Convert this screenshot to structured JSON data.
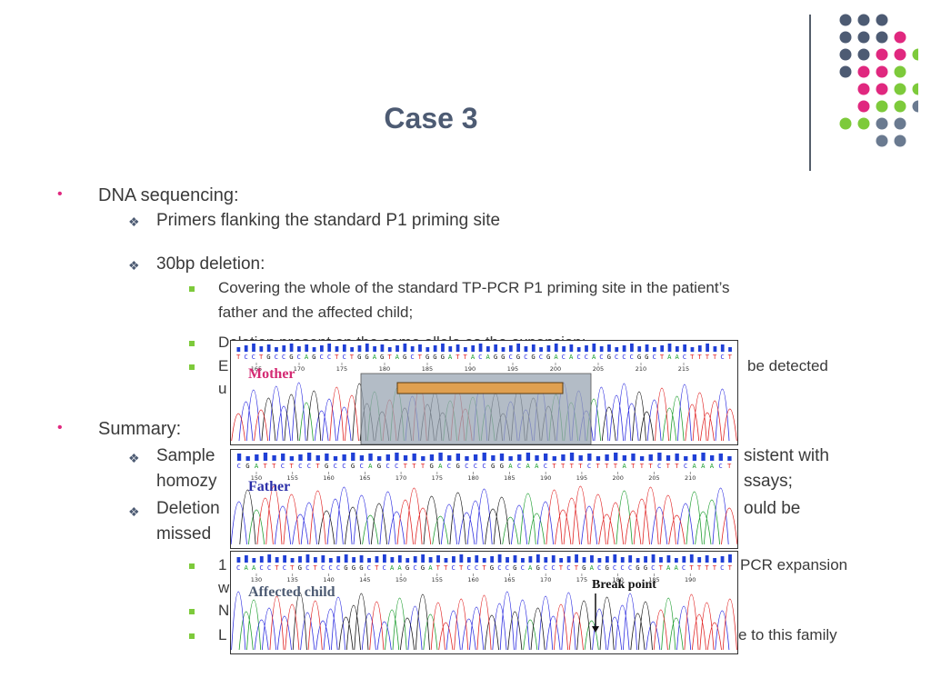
{
  "slide": {
    "title": "Case 3",
    "bullets": [
      {
        "level": 1,
        "text": "DNA sequencing:"
      },
      {
        "level": 2,
        "text": "Primers flanking the standard P1 priming site"
      },
      {
        "level": 2,
        "text": "30bp deletion:"
      },
      {
        "level": 3,
        "text": "Covering the whole of the standard TP-PCR P1 priming site in the patient’s"
      },
      {
        "level": 0,
        "text": "father and the affected child;"
      },
      {
        "level": 3,
        "text": "Deletion present on the same allele as the expansion;"
      },
      {
        "level": 3,
        "text": "E"
      },
      {
        "level": 0,
        "text": "u"
      },
      {
        "level": 0,
        "text": "be detected"
      },
      {
        "level": 1,
        "text": "Summary:"
      },
      {
        "level": 2,
        "text": "Sample"
      },
      {
        "level": 0,
        "text": "sistent with"
      },
      {
        "level": 0,
        "text": "homozy"
      },
      {
        "level": 0,
        "text": "ssays;"
      },
      {
        "level": 2,
        "text": "Deletion"
      },
      {
        "level": 0,
        "text": "ould be"
      },
      {
        "level": 0,
        "text": "missed"
      },
      {
        "level": 3,
        "text": "1"
      },
      {
        "level": 0,
        "text": "PCR expansion"
      },
      {
        "level": 0,
        "text": "w"
      },
      {
        "level": 3,
        "text": "N"
      },
      {
        "level": 3,
        "text": "L"
      },
      {
        "level": 0,
        "text": "e to this family"
      }
    ]
  },
  "chromatograms": [
    {
      "label": "Mother",
      "label_color": "#d42a73",
      "sequence": "TCCTGCCGCAGCCTCTGGAGTAGCTGGGATTACAGGCGCGCGACACCACGCCCGGCTAACTTTTCT",
      "ticks": [
        "165",
        "170",
        "175",
        "180",
        "185",
        "190",
        "195",
        "200",
        "205",
        "210",
        "215"
      ]
    },
    {
      "label": "Father",
      "label_color": "#2b2fa8",
      "sequence": "CGATTCTCCTGCCGCAGCCTTTGACGCCCGGACAACTTTTCTTTATTTCTTCAAACT",
      "ticks": [
        "150",
        "155",
        "160",
        "165",
        "170",
        "175",
        "180",
        "185",
        "190",
        "195",
        "200",
        "205",
        "210"
      ]
    },
    {
      "label": "Affected child",
      "label_color": "#4d5b73",
      "sequence": "CAACCTCTGCTCCCGGGCTCAAGCGATTCTCCTGCCGCAGCCTCTGACGCCCGGCTAACTTTTCT",
      "ticks": [
        "130",
        "135",
        "140",
        "145",
        "150",
        "155",
        "160",
        "165",
        "170",
        "175",
        "180",
        "185",
        "190"
      ],
      "annotation": "Break point"
    }
  ],
  "colors": {
    "pink": "#e0287f",
    "green": "#7dca3b",
    "slate": "#4d5b73",
    "grayblue": "#6a7a90"
  }
}
